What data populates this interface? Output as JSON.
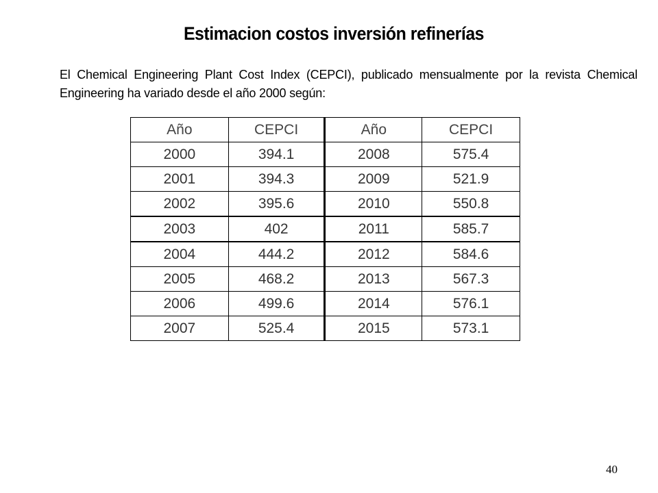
{
  "slide": {
    "title": "Estimacion costos inversión refinerías",
    "intro_text": "El Chemical Engineering Plant Cost Index (CEPCI), publicado mensualmente por la revista Chemical Engineering ha variado  desde el año 2000 según:",
    "page_number": "40"
  },
  "table": {
    "headers": [
      "Año",
      "CEPCI",
      "Año",
      "CEPCI"
    ],
    "rows": [
      [
        "2000",
        "394.1",
        "2008",
        "575.4"
      ],
      [
        "2001",
        "394.3",
        "2009",
        "521.9"
      ],
      [
        "2002",
        "395.6",
        "2010",
        "550.8"
      ],
      [
        "2003",
        "402",
        "2011",
        "585.7"
      ],
      [
        "2004",
        "444.2",
        "2012",
        "584.6"
      ],
      [
        "2005",
        "468.2",
        "2013",
        "567.3"
      ],
      [
        "2006",
        "499.6",
        "2014",
        "576.1"
      ],
      [
        "2007",
        "525.4",
        "2015",
        "573.1"
      ]
    ]
  }
}
